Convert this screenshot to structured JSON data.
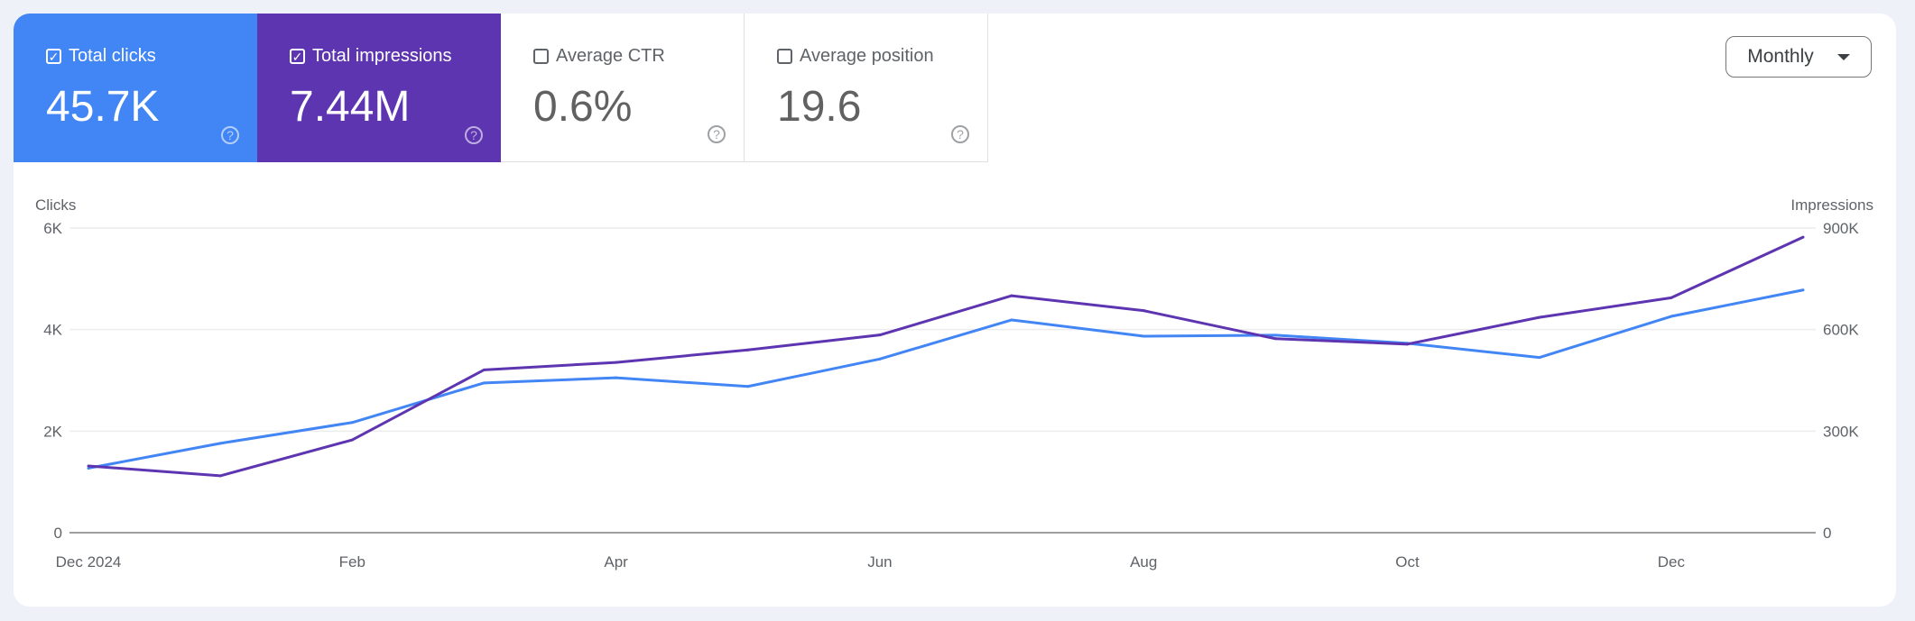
{
  "metrics": [
    {
      "label": "Total clicks",
      "value": "45.7K",
      "checked": true,
      "color": "#4285f4"
    },
    {
      "label": "Total impressions",
      "value": "7.44M",
      "checked": true,
      "color": "#5e35b1"
    },
    {
      "label": "Average CTR",
      "value": "0.6%",
      "checked": false
    },
    {
      "label": "Average position",
      "value": "19.6",
      "checked": false
    }
  ],
  "icons": {
    "checked": "checkbox-checked-icon",
    "unchecked": "checkbox-empty-icon",
    "help": "help-circle-icon",
    "dropdown": "caret-down-icon"
  },
  "help_glyph": "?",
  "check_glyph": "✓",
  "granularity": {
    "selected": "Monthly"
  },
  "chart_data": {
    "type": "line",
    "y_left": {
      "label": "Clicks",
      "ticks": [
        "0",
        "2K",
        "4K",
        "6K"
      ],
      "range": [
        0,
        6000
      ]
    },
    "y_right": {
      "label": "Impressions",
      "ticks": [
        "0",
        "300K",
        "600K",
        "900K"
      ],
      "range": [
        0,
        900000
      ]
    },
    "x_ticks": [
      {
        "label": "Dec 2024",
        "index": 0
      },
      {
        "label": "Feb",
        "index": 2
      },
      {
        "label": "Apr",
        "index": 4
      },
      {
        "label": "Jun",
        "index": 6
      },
      {
        "label": "Aug",
        "index": 8
      },
      {
        "label": "Oct",
        "index": 10
      },
      {
        "label": "Dec",
        "index": 12
      }
    ],
    "x": [
      "2024-12",
      "2025-01",
      "2025-02",
      "2025-03",
      "2025-04",
      "2025-05",
      "2025-06",
      "2025-07",
      "2025-08",
      "2025-09",
      "2025-10",
      "2025-11",
      "2025-12",
      "2026-01"
    ],
    "grid": true,
    "series": [
      {
        "name": "Clicks",
        "axis": "left",
        "color": "#4285f4",
        "values": [
          1270,
          1760,
          2170,
          2950,
          3050,
          2880,
          3420,
          4190,
          3870,
          3890,
          3730,
          3450,
          4260,
          4780
        ]
      },
      {
        "name": "Impressions",
        "axis": "right",
        "color": "#5e35b1",
        "values": [
          197000,
          168000,
          274000,
          481000,
          503000,
          540000,
          584000,
          700000,
          656000,
          573000,
          557000,
          636000,
          694000,
          873000
        ]
      }
    ]
  }
}
